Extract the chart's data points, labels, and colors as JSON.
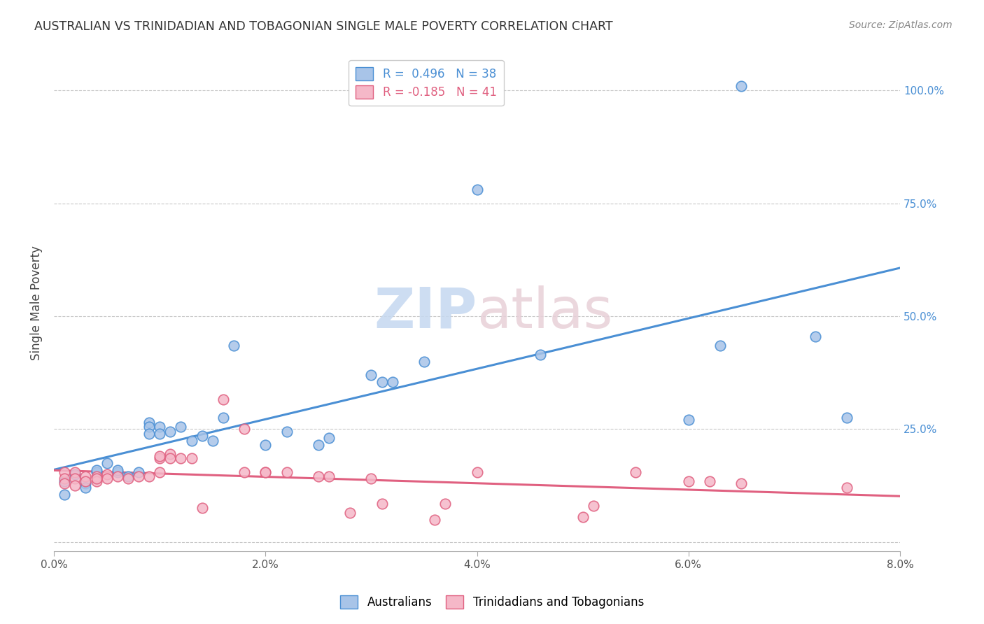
{
  "title": "AUSTRALIAN VS TRINIDADIAN AND TOBAGONIAN SINGLE MALE POVERTY CORRELATION CHART",
  "source": "Source: ZipAtlas.com",
  "ylabel": "Single Male Poverty",
  "blue_color": "#a8c4e8",
  "pink_color": "#f5b8c8",
  "blue_line_color": "#4a8fd4",
  "pink_line_color": "#e06080",
  "xlim": [
    0.0,
    0.08
  ],
  "ylim": [
    -0.02,
    1.08
  ],
  "ytick_vals": [
    0.0,
    0.25,
    0.5,
    0.75,
    1.0
  ],
  "ytick_labels": [
    "",
    "25.0%",
    "50.0%",
    "75.0%",
    "100.0%"
  ],
  "xtick_vals": [
    0.0,
    0.02,
    0.04,
    0.06,
    0.08
  ],
  "xtick_labels": [
    "0.0%",
    "2.0%",
    "4.0%",
    "6.0%",
    "8.0%"
  ],
  "blue_scatter": [
    [
      0.001,
      0.135
    ],
    [
      0.001,
      0.105
    ],
    [
      0.002,
      0.15
    ],
    [
      0.003,
      0.13
    ],
    [
      0.003,
      0.12
    ],
    [
      0.004,
      0.155
    ],
    [
      0.004,
      0.16
    ],
    [
      0.005,
      0.175
    ],
    [
      0.006,
      0.155
    ],
    [
      0.006,
      0.16
    ],
    [
      0.007,
      0.145
    ],
    [
      0.008,
      0.155
    ],
    [
      0.009,
      0.265
    ],
    [
      0.009,
      0.255
    ],
    [
      0.009,
      0.24
    ],
    [
      0.01,
      0.255
    ],
    [
      0.01,
      0.24
    ],
    [
      0.011,
      0.245
    ],
    [
      0.012,
      0.255
    ],
    [
      0.013,
      0.225
    ],
    [
      0.014,
      0.235
    ],
    [
      0.015,
      0.225
    ],
    [
      0.016,
      0.275
    ],
    [
      0.017,
      0.435
    ],
    [
      0.02,
      0.215
    ],
    [
      0.022,
      0.245
    ],
    [
      0.025,
      0.215
    ],
    [
      0.026,
      0.23
    ],
    [
      0.03,
      0.37
    ],
    [
      0.031,
      0.355
    ],
    [
      0.032,
      0.355
    ],
    [
      0.035,
      0.4
    ],
    [
      0.04,
      0.78
    ],
    [
      0.046,
      0.415
    ],
    [
      0.06,
      0.27
    ],
    [
      0.063,
      0.435
    ],
    [
      0.065,
      1.01
    ],
    [
      0.072,
      0.455
    ],
    [
      0.075,
      0.275
    ]
  ],
  "pink_scatter": [
    [
      0.001,
      0.155
    ],
    [
      0.001,
      0.14
    ],
    [
      0.001,
      0.13
    ],
    [
      0.002,
      0.155
    ],
    [
      0.002,
      0.14
    ],
    [
      0.002,
      0.125
    ],
    [
      0.003,
      0.145
    ],
    [
      0.003,
      0.135
    ],
    [
      0.004,
      0.145
    ],
    [
      0.004,
      0.135
    ],
    [
      0.004,
      0.14
    ],
    [
      0.005,
      0.15
    ],
    [
      0.005,
      0.14
    ],
    [
      0.006,
      0.145
    ],
    [
      0.007,
      0.14
    ],
    [
      0.008,
      0.145
    ],
    [
      0.009,
      0.145
    ],
    [
      0.01,
      0.155
    ],
    [
      0.01,
      0.185
    ],
    [
      0.01,
      0.19
    ],
    [
      0.011,
      0.195
    ],
    [
      0.011,
      0.185
    ],
    [
      0.012,
      0.185
    ],
    [
      0.013,
      0.185
    ],
    [
      0.014,
      0.075
    ],
    [
      0.016,
      0.315
    ],
    [
      0.018,
      0.25
    ],
    [
      0.018,
      0.155
    ],
    [
      0.02,
      0.155
    ],
    [
      0.02,
      0.155
    ],
    [
      0.022,
      0.155
    ],
    [
      0.025,
      0.145
    ],
    [
      0.026,
      0.145
    ],
    [
      0.028,
      0.065
    ],
    [
      0.03,
      0.14
    ],
    [
      0.031,
      0.085
    ],
    [
      0.036,
      0.05
    ],
    [
      0.037,
      0.085
    ],
    [
      0.04,
      0.155
    ],
    [
      0.05,
      0.055
    ],
    [
      0.051,
      0.08
    ],
    [
      0.055,
      0.155
    ],
    [
      0.06,
      0.135
    ],
    [
      0.062,
      0.135
    ],
    [
      0.065,
      0.13
    ],
    [
      0.075,
      0.12
    ]
  ]
}
